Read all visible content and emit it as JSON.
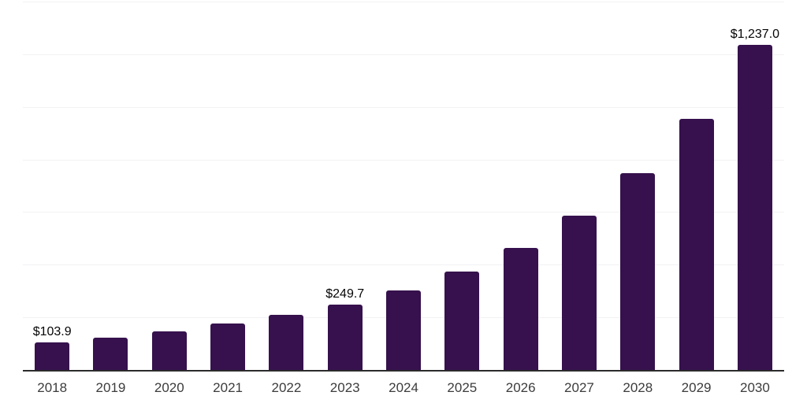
{
  "chart_data": {
    "type": "bar",
    "title": "",
    "xlabel": "",
    "ylabel": "",
    "categories": [
      "2018",
      "2019",
      "2020",
      "2021",
      "2022",
      "2023",
      "2024",
      "2025",
      "2026",
      "2027",
      "2028",
      "2029",
      "2030"
    ],
    "values": [
      103.9,
      123,
      147,
      176,
      209,
      249.7,
      302,
      374,
      464,
      586,
      748,
      954,
      1237.0
    ],
    "value_labels": [
      "$103.9",
      "",
      "",
      "",
      "",
      "$249.7",
      "",
      "",
      "",
      "",
      "",
      "",
      "$1,237.0"
    ],
    "ylim": [
      0,
      1400
    ],
    "gridline_step": 200,
    "grid": "horizontal",
    "legend": "none",
    "y_axis_ticks_visible": false,
    "colors": {
      "bar": "#36114d",
      "axis_line": "#2b2b2b",
      "gridline": "#f2f2f4",
      "tick_label": "#3c3c3c",
      "value_label": "#050505",
      "background": "#ffffff"
    }
  }
}
